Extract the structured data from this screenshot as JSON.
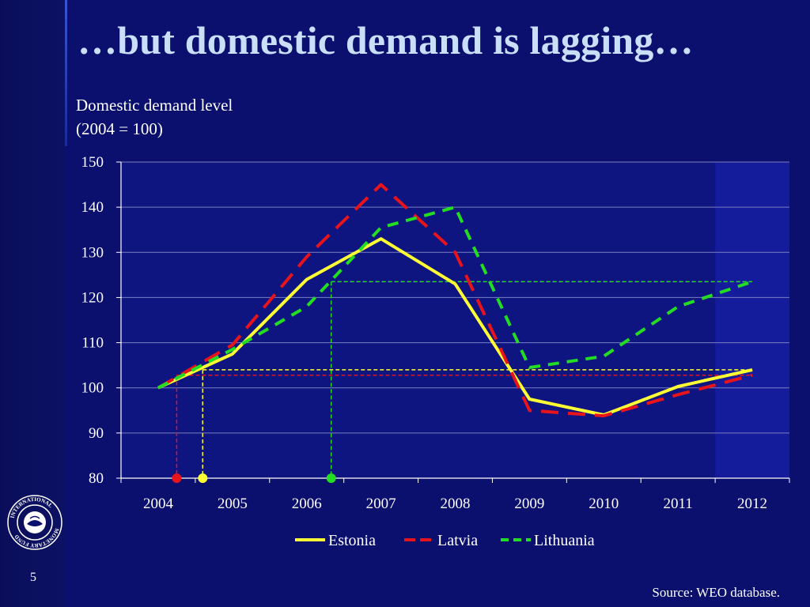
{
  "slide": {
    "title": "…but domestic demand is lagging…",
    "page_number": "5",
    "source": "Source: WEO database.",
    "logo_text": "INTERNATIONAL MONETARY FUND"
  },
  "colors": {
    "background": "#0b0f6e",
    "plot_background": "#0e1480",
    "forecast_shade": "#141c9c",
    "gridline": "#7a80c0",
    "title": "#c9def7",
    "estonia": "#ffff33",
    "latvia": "#e8141c",
    "lithuania": "#22dd22"
  },
  "chart_data": {
    "type": "line",
    "title": "Domestic demand level",
    "subtitle": "(2004 = 100)",
    "ylabel_lines": [
      "Domestic demand level",
      "(2004 = 100)"
    ],
    "xlabel": "",
    "categories": [
      "2004",
      "2005",
      "2006",
      "2007",
      "2008",
      "2009",
      "2010",
      "2011",
      "2012"
    ],
    "ylim": [
      80,
      150
    ],
    "yticks": [
      80,
      90,
      100,
      110,
      120,
      130,
      140,
      150
    ],
    "grid": true,
    "forecast_shaded_from": 2011.5,
    "legend_position": "bottom",
    "series": [
      {
        "name": "Estonia",
        "style": "solid",
        "values": [
          100,
          107.5,
          124,
          133,
          123,
          97.5,
          94,
          100.3,
          104
        ]
      },
      {
        "name": "Latvia",
        "style": "dashed",
        "values": [
          100,
          109.5,
          129,
          145,
          130,
          95,
          93.8,
          98.5,
          102.8
        ]
      },
      {
        "name": "Lithuania",
        "style": "dashed",
        "values": [
          100,
          108.5,
          118,
          135.5,
          140,
          104.5,
          107,
          118,
          123.5
        ]
      }
    ],
    "reference_markers": [
      {
        "series": "Latvia",
        "level": 102.8,
        "year": 2004.25
      },
      {
        "series": "Estonia",
        "level": 104,
        "year": 2004.6
      },
      {
        "series": "Lithuania",
        "level": 123.5,
        "year": 2006.33
      }
    ]
  }
}
